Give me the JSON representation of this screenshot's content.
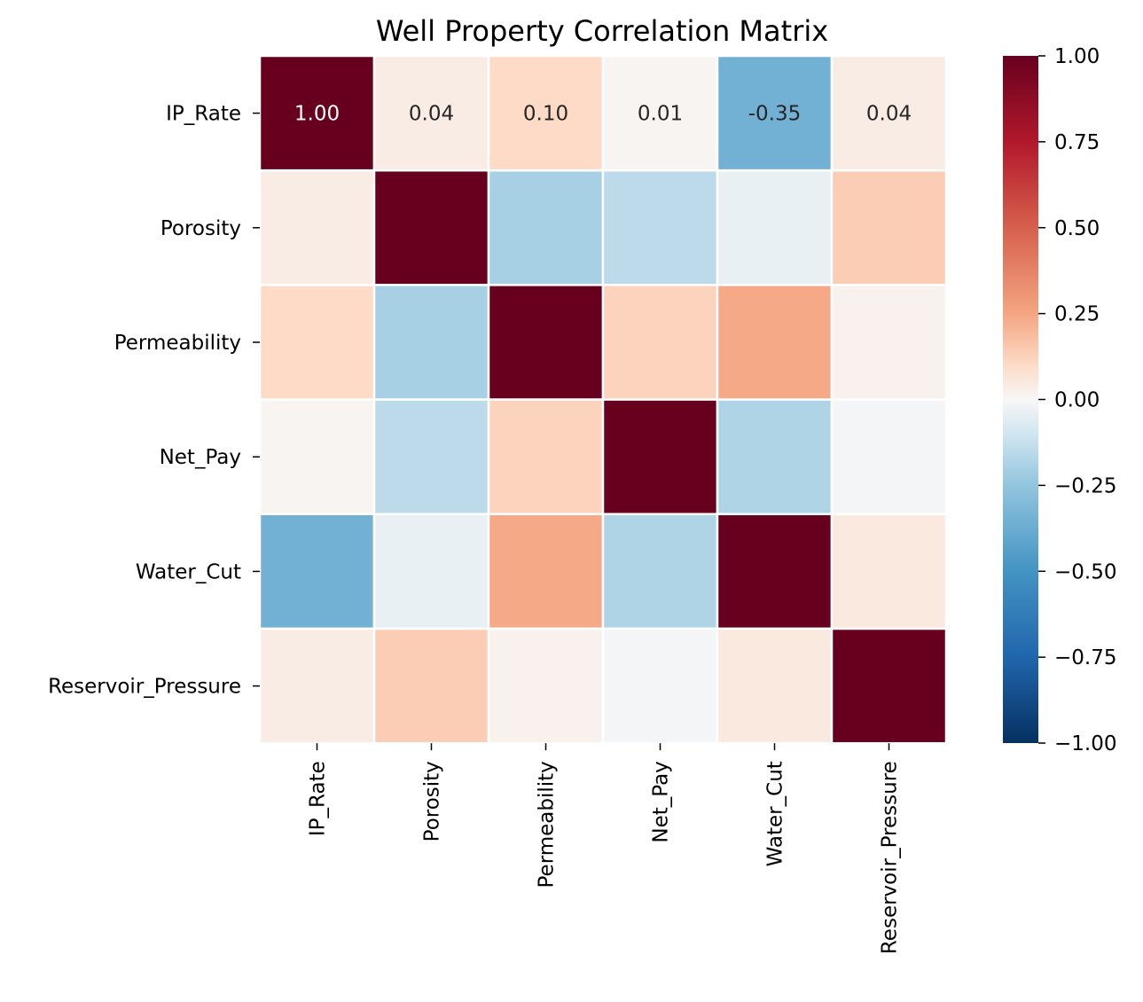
{
  "chart_data": {
    "type": "heatmap",
    "title": "Well Property Correlation Matrix",
    "xlabel": "",
    "ylabel": "",
    "x_labels": [
      "IP_Rate",
      "Porosity",
      "Permeability",
      "Net_Pay",
      "Water_Cut",
      "Reservoir_Pressure"
    ],
    "y_labels": [
      "IP_Rate",
      "Porosity",
      "Permeability",
      "Net_Pay",
      "Water_Cut",
      "Reservoir_Pressure"
    ],
    "matrix": [
      [
        1.0,
        0.04,
        0.1,
        0.01,
        -0.35,
        0.04
      ],
      [
        0.04,
        1.0,
        -0.2,
        -0.15,
        -0.04,
        0.14
      ],
      [
        0.1,
        -0.2,
        1.0,
        0.12,
        0.24,
        0.02
      ],
      [
        0.01,
        -0.15,
        0.12,
        1.0,
        -0.18,
        -0.01
      ],
      [
        -0.35,
        -0.04,
        0.24,
        -0.18,
        1.0,
        0.05
      ],
      [
        0.04,
        0.14,
        0.02,
        -0.01,
        0.05,
        1.0
      ]
    ],
    "annotations_row": 0,
    "annotations": [
      "1.00",
      "0.04",
      "0.10",
      "0.01",
      "-0.35",
      "0.04"
    ],
    "colormap": "RdBu_r",
    "vmin": -1.0,
    "vmax": 1.0,
    "colorbar_ticks": [
      "1.00",
      "0.75",
      "0.50",
      "0.25",
      "0.00",
      "−0.25",
      "−0.50",
      "−0.75",
      "−1.00"
    ],
    "colorbar_tick_values": [
      1.0,
      0.75,
      0.5,
      0.25,
      0.0,
      -0.25,
      -0.5,
      -0.75,
      -1.0
    ],
    "grid": false,
    "legend": "colorbar-right"
  }
}
